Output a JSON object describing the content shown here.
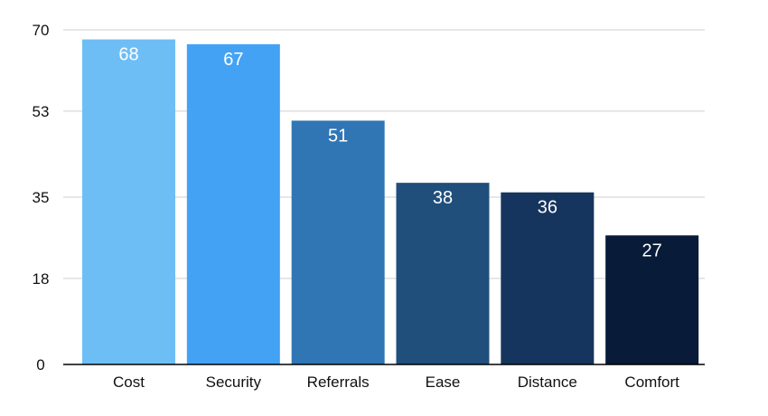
{
  "chart_data": {
    "type": "bar",
    "title": "",
    "xlabel": "",
    "ylabel": "",
    "categories": [
      "Cost",
      "Security",
      "Referrals",
      "Ease",
      "Distance",
      "Comfort"
    ],
    "values": [
      68,
      67,
      51,
      38,
      36,
      27
    ],
    "data_labels": [
      "68",
      "67",
      "51",
      "38",
      "36",
      "27"
    ],
    "colors": [
      "#6EBEF6",
      "#44A2F5",
      "#3076B5",
      "#204F7C",
      "#16355E",
      "#081B38"
    ],
    "ylim": [
      0,
      70
    ],
    "yticks": [
      0,
      18,
      35,
      53,
      70
    ],
    "ytick_labels": [
      "0",
      "18",
      "35",
      "53",
      "70"
    ],
    "grid": true,
    "legend": "none"
  }
}
